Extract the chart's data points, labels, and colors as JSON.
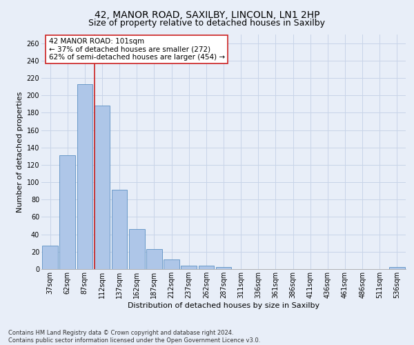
{
  "title1": "42, MANOR ROAD, SAXILBY, LINCOLN, LN1 2HP",
  "title2": "Size of property relative to detached houses in Saxilby",
  "xlabel": "Distribution of detached houses by size in Saxilby",
  "ylabel": "Number of detached properties",
  "bar_values": [
    27,
    131,
    213,
    188,
    91,
    46,
    23,
    11,
    4,
    4,
    2,
    0,
    0,
    0,
    0,
    0,
    0,
    0,
    0,
    0,
    2
  ],
  "x_labels": [
    "37sqm",
    "62sqm",
    "87sqm",
    "112sqm",
    "137sqm",
    "162sqm",
    "187sqm",
    "212sqm",
    "237sqm",
    "262sqm",
    "287sqm",
    "311sqm",
    "336sqm",
    "361sqm",
    "386sqm",
    "411sqm",
    "436sqm",
    "461sqm",
    "486sqm",
    "511sqm",
    "536sqm"
  ],
  "bar_color": "#aec6e8",
  "bar_edge_color": "#5a8fc2",
  "grid_color": "#c8d4e8",
  "red_line_color": "#cc2222",
  "annotation_text": "42 MANOR ROAD: 101sqm\n← 37% of detached houses are smaller (272)\n62% of semi-detached houses are larger (454) →",
  "annotation_box_color": "white",
  "annotation_box_edge": "#cc2222",
  "ylim_max": 270,
  "yticks": [
    0,
    20,
    40,
    60,
    80,
    100,
    120,
    140,
    160,
    180,
    200,
    220,
    240,
    260
  ],
  "footnote": "Contains HM Land Registry data © Crown copyright and database right 2024.\nContains public sector information licensed under the Open Government Licence v3.0.",
  "bg_color": "#e8eef8",
  "title1_fontsize": 10,
  "title2_fontsize": 9,
  "tick_fontsize": 7,
  "ylabel_fontsize": 8,
  "xlabel_fontsize": 8,
  "footnote_fontsize": 6,
  "annot_fontsize": 7.5
}
